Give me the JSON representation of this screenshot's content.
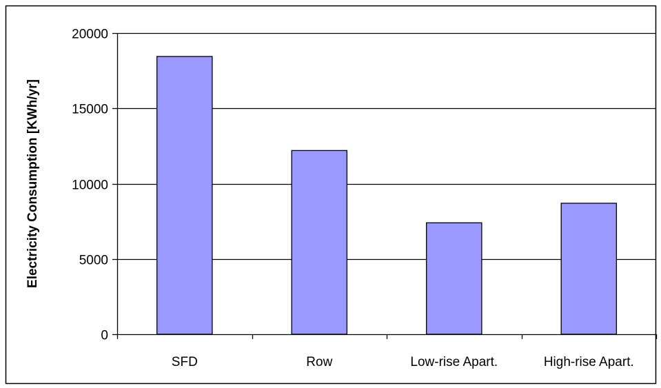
{
  "chart_data": {
    "type": "bar",
    "title": "",
    "xlabel": "",
    "ylabel": "Electricity Consumption [KWh/yr]",
    "categories": [
      "SFD",
      "Row",
      "Low-rise Apart.",
      "High-rise Apart."
    ],
    "values": [
      18450,
      12200,
      7400,
      8700
    ],
    "ylim": [
      0,
      20000
    ],
    "yticks": [
      0,
      5000,
      10000,
      15000,
      20000
    ],
    "ytick_labels": [
      "0",
      "5000",
      "10000",
      "15000",
      "20000"
    ],
    "grid": true,
    "legend": "none",
    "colors": {
      "bar_fill": "#9999ff",
      "bar_stroke": "#000000",
      "grid": "#000000",
      "frame": "#000000"
    }
  }
}
